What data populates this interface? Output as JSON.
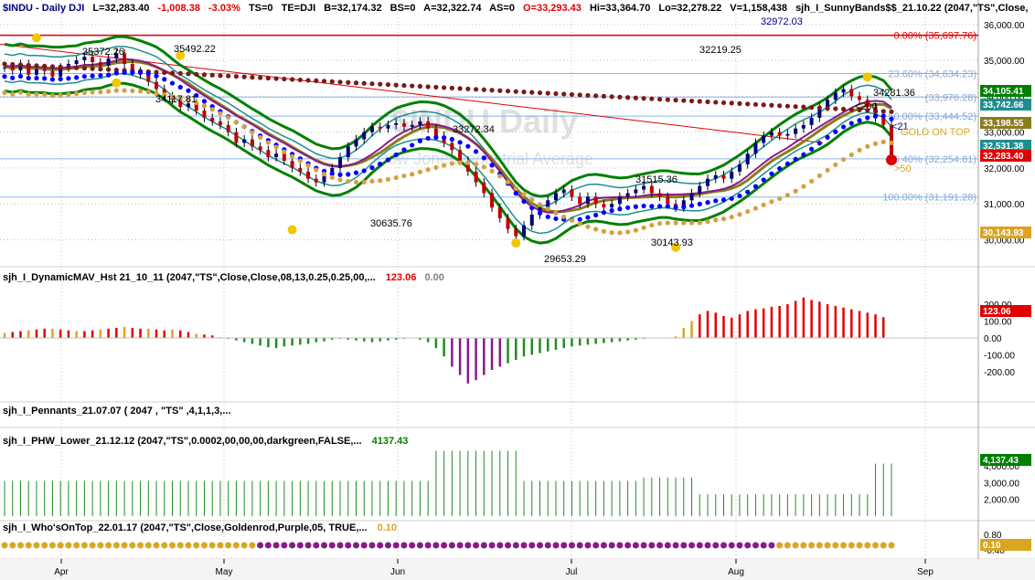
{
  "header": {
    "symbol": "$INDU - Daily  DJI",
    "last": "L=32,283.40",
    "change": "-1,008.38",
    "pct": "-3.03%",
    "ts": "TS=0",
    "te": "TE=DJI",
    "bid": "B=32,174.32",
    "bs": "BS=0",
    "ask": "A=32,322.74",
    "as": "AS=0",
    "open": "O=33,293.43",
    "high": "Hi=33,364.70",
    "low": "Lo=32,278.22",
    "volume": "V=1,158,438",
    "study": "sjh_I_SunnyBands$$_21.10.22 (2047,\"TS\",Close,",
    "study_value": "32972.03"
  },
  "watermark": {
    "title": "$INDU Daily",
    "subtitle": "Dow Jones Industrial Average"
  },
  "colors": {
    "green": "#008000",
    "teal": "#1e8e8e",
    "olive": "#8a7d1a",
    "purple": "#8a1a8a",
    "navy": "#000080",
    "blue": "#0000ff",
    "red": "#e00000",
    "gold": "#daa520",
    "maroon": "#7a1a1a",
    "fib": "#8ab4e8"
  },
  "chart_data": [
    {
      "type": "candlestick",
      "name": "price",
      "x_ticks": [
        "Apr",
        "May",
        "Jun",
        "Jul",
        "Aug",
        "Sep"
      ],
      "y_ticks": [
        "36,000.00",
        "35,000.00",
        "34,000.00",
        "33,000.00",
        "32,000.00",
        "31,000.00",
        "30,000.00"
      ],
      "ylim": [
        29300,
        36300
      ],
      "candles": [
        34800,
        34720,
        34900,
        34600,
        34750,
        34700,
        34550,
        34800,
        34900,
        35000,
        35100,
        34950,
        34850,
        35050,
        35200,
        34900,
        34700,
        34600,
        34400,
        34200,
        34000,
        33900,
        33700,
        33800,
        33600,
        33400,
        33300,
        33200,
        33000,
        32700,
        32800,
        32600,
        32500,
        32300,
        32400,
        32200,
        32000,
        31900,
        31700,
        31600,
        31800,
        32000,
        32300,
        32600,
        32800,
        33000,
        33150,
        33100,
        33200,
        33250,
        33150,
        33200,
        33300,
        33100,
        32900,
        32700,
        32500,
        32200,
        31900,
        31600,
        31300,
        30900,
        30600,
        30300,
        30100,
        30400,
        30700,
        30900,
        31100,
        31300,
        31400,
        31200,
        31000,
        31200,
        31000,
        30900,
        31000,
        31200,
        31300,
        31400,
        31500,
        31300,
        31200,
        31000,
        30900,
        31100,
        31300,
        31500,
        31700,
        31800,
        31700,
        31900,
        32100,
        32400,
        32700,
        32900,
        33000,
        32900,
        32950,
        33100,
        33200,
        33400,
        33700,
        33900,
        34100,
        34200,
        34000,
        33900,
        33700,
        33400,
        33200,
        32283
      ],
      "fib_levels": [
        {
          "label": "0.00% (35,697.76)",
          "value": 35697.76
        },
        {
          "label": "23.60% (34,634.23)",
          "value": 34634.23
        },
        {
          "label": "(33,976.28)",
          "value": 33976.28
        },
        {
          "label": "50.00% (33,444.52)",
          "value": 33444.52
        },
        {
          "label": "76.40% (32,254.81)",
          "value": 32254.81
        },
        {
          "label": "100.00% (31,191.28)",
          "value": 31191.28
        }
      ],
      "price_labels": [
        {
          "text": "35372.26"
        },
        {
          "text": "35492.22"
        },
        {
          "text": "34117.81"
        },
        {
          "text": "33272.34"
        },
        {
          "text": "32219.25"
        },
        {
          "text": "30635.76"
        },
        {
          "text": "29653.29"
        },
        {
          "text": "31515.36"
        },
        {
          "text": "30143.93"
        },
        {
          "text": "34281.36"
        }
      ],
      "annotations": [
        "<200",
        "<21",
        ">50",
        "GOLD ON TOP"
      ],
      "right_tags": [
        {
          "text": "34,105.41",
          "color": "#008000"
        },
        {
          "text": "33,742.66",
          "color": "#1e8e8e"
        },
        {
          "text": "33,198.55",
          "color": "#8a7d1a"
        },
        {
          "text": "32,531.38",
          "color": "#1e8e8e"
        },
        {
          "text": "32,283.40",
          "color": "#e00000"
        },
        {
          "text": "30,143.93",
          "color": "#daa520"
        }
      ]
    },
    {
      "type": "bar",
      "name": "sjh_I_DynamicMAV_Hst 21_10_11 (2047,\"TS\",Close,Close,08,13,0.25,0.25,00,...",
      "value_label": "123.06",
      "value_label2": "0.00",
      "y_ticks": [
        "200.00",
        "100.00",
        "0.00",
        "-100.00",
        "-200.00"
      ],
      "ylim": [
        -300,
        260
      ],
      "values": [
        30,
        35,
        40,
        45,
        50,
        55,
        55,
        50,
        45,
        40,
        40,
        45,
        50,
        55,
        60,
        65,
        60,
        55,
        55,
        50,
        45,
        50,
        45,
        35,
        25,
        20,
        15,
        5,
        -5,
        -15,
        -25,
        -35,
        -45,
        -55,
        -60,
        -50,
        -45,
        -40,
        -35,
        -25,
        -20,
        -10,
        -5,
        -10,
        -15,
        -20,
        -25,
        -20,
        -15,
        -10,
        -5,
        0,
        -10,
        -25,
        -60,
        -110,
        -170,
        -220,
        -270,
        -250,
        -220,
        -190,
        -170,
        -150,
        -130,
        -110,
        -100,
        -90,
        -80,
        -70,
        -60,
        -50,
        -45,
        -40,
        -35,
        -30,
        -25,
        -20,
        -15,
        -10,
        -5,
        0,
        0,
        0,
        10,
        60,
        100,
        140,
        160,
        150,
        130,
        120,
        140,
        160,
        170,
        175,
        185,
        190,
        200,
        220,
        240,
        225,
        215,
        200,
        190,
        180,
        170,
        160,
        150,
        140,
        123.06
      ]
    },
    {
      "type": "bar",
      "name": "sjh_I_Pennants_21.07.07 ( 2047 , \"TS\" ,4,1,1,3,..."
    },
    {
      "type": "bar",
      "name": "sjh_I_PHW_Lower_21.12.12 (2047,\"TS\",0.0002,00,00,00,darkgreen,FALSE,...",
      "value_label": "4137.43",
      "y_ticks": [
        "4,000.00",
        "3,000.00",
        "2,000.00"
      ],
      "ylim": [
        1000,
        5200
      ],
      "right_tag": "4,137.43",
      "values": [
        3100,
        3100,
        3100,
        3100,
        3100,
        3100,
        3100,
        3100,
        3100,
        3100,
        3100,
        3100,
        3100,
        3100,
        3100,
        3100,
        3100,
        3100,
        3100,
        3100,
        3100,
        3100,
        3100,
        3100,
        3100,
        3100,
        3100,
        3100,
        3100,
        3100,
        3100,
        3100,
        3100,
        3100,
        3100,
        3100,
        3100,
        3100,
        3100,
        3100,
        3100,
        3100,
        3100,
        3100,
        3100,
        3100,
        3100,
        3100,
        3100,
        3100,
        3100,
        3100,
        3100,
        3100,
        3100,
        3100,
        3100,
        3100,
        3100,
        3100,
        3100,
        3100,
        3100,
        3100,
        3100,
        3100,
        3100,
        3100,
        3100,
        3100,
        3100,
        3100,
        3100,
        3100,
        3100,
        3100,
        3100,
        3100,
        3100,
        3100,
        3100,
        3100,
        3100,
        3100,
        3100,
        3100,
        3100,
        3100,
        3100,
        3100,
        3100,
        3100,
        3100,
        3100,
        3100,
        3100,
        3100,
        3100,
        3100,
        3100,
        3100,
        3100,
        3100,
        3100,
        3100,
        3100,
        3100,
        3100,
        3100,
        3100,
        3100,
        4137
      ]
    },
    {
      "type": "bar",
      "name": "sjh_I_Who'sOnTop_22.01.17 (2047,\"TS\",Close,Goldenrod,Purple,05, TRUE,...",
      "value_label": "0.10",
      "y_ticks": [
        "0.80",
        "-0.40"
      ],
      "right_tag": "0.10"
    }
  ]
}
